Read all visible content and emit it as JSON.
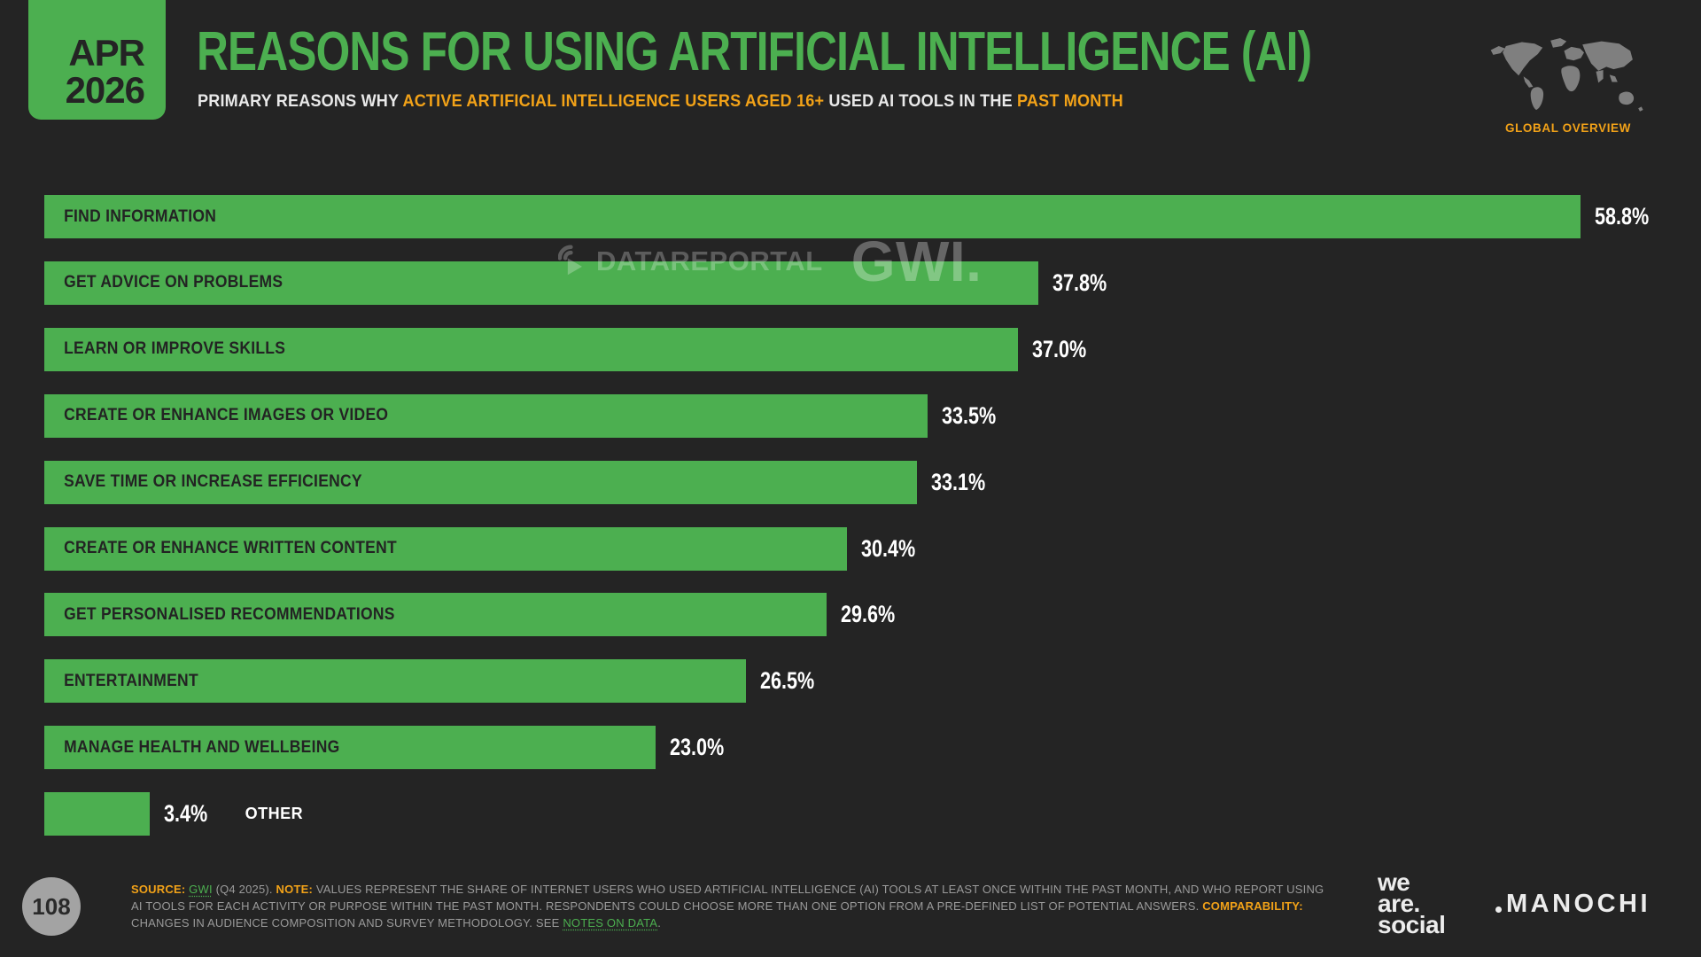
{
  "badge": {
    "month": "APR",
    "year": "2026"
  },
  "header": {
    "title": "REASONS FOR USING ARTIFICIAL INTELLIGENCE (AI)",
    "subtitle_parts": [
      {
        "text": "PRIMARY REASONS WHY ",
        "highlight": false
      },
      {
        "text": "ACTIVE ARTIFICIAL INTELLIGENCE USERS AGED 16+",
        "highlight": true
      },
      {
        "text": " USED AI TOOLS IN THE ",
        "highlight": false
      },
      {
        "text": "PAST MONTH",
        "highlight": true
      }
    ],
    "region_label": "GLOBAL OVERVIEW"
  },
  "watermark": {
    "brand": "DATAREPORTAL",
    "partner": "GWI."
  },
  "chart_data": {
    "type": "bar",
    "orientation": "horizontal",
    "unit": "%",
    "xlim": [
      0,
      60
    ],
    "grid": false,
    "bar_color": "#4CAF50",
    "categories": [
      "FIND INFORMATION",
      "GET ADVICE ON PROBLEMS",
      "LEARN OR IMPROVE SKILLS",
      "CREATE OR ENHANCE IMAGES OR VIDEO",
      "SAVE TIME OR INCREASE EFFICIENCY",
      "CREATE OR ENHANCE WRITTEN CONTENT",
      "GET PERSONALISED RECOMMENDATIONS",
      "ENTERTAINMENT",
      "MANAGE HEALTH AND WELLBEING",
      "OTHER"
    ],
    "values": [
      58.8,
      37.8,
      37.0,
      33.5,
      33.1,
      30.4,
      29.6,
      26.5,
      23.0,
      3.4
    ],
    "value_labels": [
      "58.8%",
      "37.8%",
      "37.0%",
      "33.5%",
      "33.1%",
      "30.4%",
      "29.6%",
      "26.5%",
      "23.0%",
      "3.4%"
    ],
    "category_label_placement": [
      "inside",
      "inside",
      "inside",
      "inside",
      "inside",
      "inside",
      "inside",
      "inside",
      "inside",
      "outside"
    ]
  },
  "footer": {
    "lines": [
      [
        {
          "text": "SOURCE: ",
          "style": "orange"
        },
        {
          "text": "GWI",
          "style": "link"
        },
        {
          "text": " (Q4 2025). ",
          "style": "plain"
        },
        {
          "text": "NOTE: ",
          "style": "orange"
        },
        {
          "text": "VALUES REPRESENT THE SHARE OF INTERNET USERS WHO USED ARTIFICIAL INTELLIGENCE (AI) TOOLS AT LEAST ONCE WITHIN THE PAST MONTH, AND WHO REPORT USING",
          "style": "plain"
        }
      ],
      [
        {
          "text": "AI TOOLS FOR EACH ACTIVITY OR PURPOSE WITHIN THE PAST MONTH. RESPONDENTS COULD CHOOSE MORE THAN ONE OPTION FROM A PRE-DEFINED LIST OF POTENTIAL ANSWERS. ",
          "style": "plain"
        },
        {
          "text": "COMPARABILITY:",
          "style": "orange"
        }
      ],
      [
        {
          "text": "CHANGES IN AUDIENCE COMPOSITION AND SURVEY METHODOLOGY. SEE ",
          "style": "plain"
        },
        {
          "text": "NOTES ON DATA",
          "style": "link"
        },
        {
          "text": ".",
          "style": "plain"
        }
      ]
    ]
  },
  "page_number": "108",
  "logos": {
    "we_are_social_lines": [
      "we",
      "are.",
      "social"
    ],
    "manochi": "MANOCHI"
  },
  "colors": {
    "background": "#242424",
    "green": "#4CAF50",
    "orange": "#F2A218",
    "footer_grey": "#9a9a9a",
    "map_grey": "#7f7f7f"
  }
}
